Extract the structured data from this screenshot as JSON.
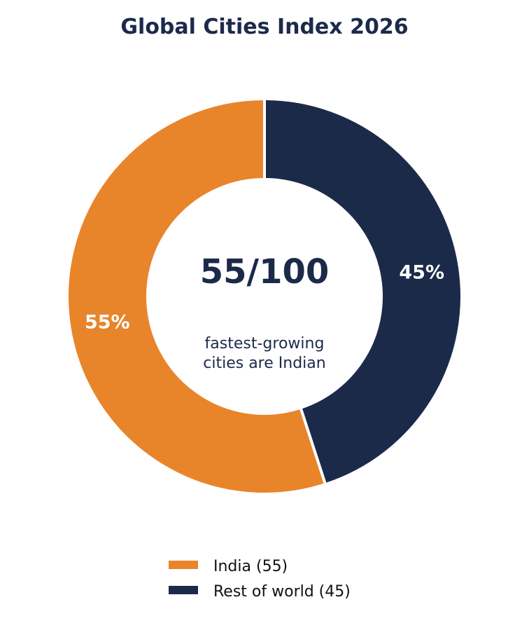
{
  "colors": {
    "title": "#1c2a4a",
    "text": "#1c2a4a",
    "background": "#ffffff",
    "slice_label": "#ffffff",
    "legend_text": "#111111"
  },
  "chart_data": {
    "type": "pie",
    "variant": "donut",
    "title": "Global Cities Index 2026",
    "slices": [
      {
        "label": "India",
        "value": 55,
        "percent_label": "55%",
        "legend": "India (55)",
        "color": "#e8852b"
      },
      {
        "label": "Rest of world",
        "value": 45,
        "percent_label": "45%",
        "legend": "Rest of world (45)",
        "color": "#1c2a4a"
      }
    ],
    "start_angle": "top",
    "direction": "counterclockwise",
    "center_text": {
      "value": "55/100",
      "caption_lines": [
        "fastest-growing",
        "cities are Indian"
      ]
    },
    "legend_position": "bottom-center"
  }
}
